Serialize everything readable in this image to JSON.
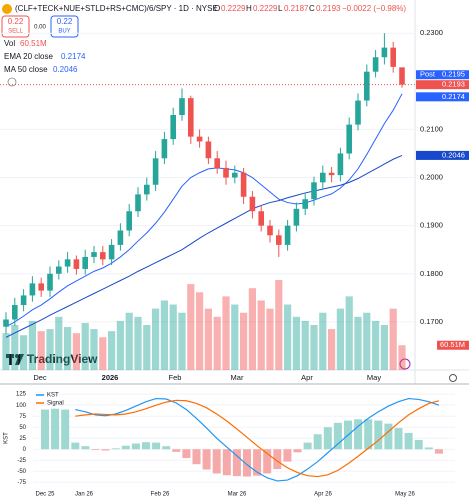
{
  "header": {
    "symbol": "(CLF+TECK+NUE+STLD+RS+CMC)/6/SPY · 1D · NYSE",
    "o_label": "O",
    "o": "0.2229",
    "h_label": "H",
    "h": "0.2229",
    "l_label": "L",
    "l": "0.2187",
    "c_label": "C",
    "c": "0.2193",
    "change": "−0.0022 (−0.98%)",
    "sell_price": "0.22",
    "sell": "SELL",
    "spread": "0.00",
    "buy_price": "0.22",
    "buy": "BUY",
    "vol_label": "Vol",
    "vol": "60.51M",
    "ema_label": "EMA 20 close",
    "ema": "0.2174",
    "ma_label": "MA 50 close",
    "ma": "0.2046",
    "post": "Post",
    "post_price": "0.2195",
    "logo": "TradingView"
  },
  "chart_data": [
    {
      "type": "candlestick",
      "x_labels": [
        "Dec",
        "2026",
        "Feb",
        "Mar",
        "Apr",
        "May"
      ],
      "ylim": [
        0.16,
        0.2369
      ],
      "yticks": [
        {
          "value": 0.23,
          "label": "0.2300"
        },
        {
          "value": 0.21,
          "label": "0.2100"
        },
        {
          "value": 0.2,
          "label": "0.2000"
        },
        {
          "value": 0.19,
          "label": "0.1900"
        },
        {
          "value": 0.18,
          "label": "0.1800"
        },
        {
          "value": 0.17,
          "label": "0.1700"
        }
      ],
      "up_color": "#26a69a",
      "down_color": "#ef5350",
      "open": [
        0.169,
        0.1705,
        0.1735,
        0.1755,
        0.178,
        0.1765,
        0.18,
        0.1815,
        0.183,
        0.181,
        0.1835,
        0.1845,
        0.183,
        0.186,
        0.189,
        0.193,
        0.1965,
        0.1985,
        0.204,
        0.208,
        0.213,
        0.2165,
        0.2085,
        0.2075,
        0.204,
        0.202,
        0.2,
        0.201,
        0.196,
        0.193,
        0.19,
        0.188,
        0.186,
        0.19,
        0.1935,
        0.1955,
        0.199,
        0.201,
        0.2005,
        0.205,
        0.211,
        0.216,
        0.222,
        0.225,
        0.227,
        0.2229
      ],
      "high": [
        0.172,
        0.175,
        0.1768,
        0.1795,
        0.1792,
        0.1815,
        0.1828,
        0.1845,
        0.1838,
        0.185,
        0.1858,
        0.1858,
        0.1872,
        0.1905,
        0.1945,
        0.198,
        0.2,
        0.2055,
        0.2095,
        0.2145,
        0.2185,
        0.217,
        0.21,
        0.2085,
        0.2055,
        0.2035,
        0.2025,
        0.202,
        0.1972,
        0.1942,
        0.1912,
        0.1892,
        0.1912,
        0.1948,
        0.1968,
        0.2002,
        0.2025,
        0.2022,
        0.2062,
        0.2125,
        0.2175,
        0.2235,
        0.2265,
        0.23,
        0.2282,
        0.2229
      ],
      "low": [
        0.1675,
        0.1692,
        0.1722,
        0.1742,
        0.1752,
        0.1752,
        0.1788,
        0.1802,
        0.1798,
        0.1798,
        0.1822,
        0.1818,
        0.1818,
        0.1848,
        0.1878,
        0.1918,
        0.1952,
        0.1972,
        0.2028,
        0.2068,
        0.2118,
        0.207,
        0.2062,
        0.2028,
        0.2008,
        0.1985,
        0.1988,
        0.1945,
        0.1915,
        0.1888,
        0.1865,
        0.1835,
        0.1848,
        0.1888,
        0.1922,
        0.1942,
        0.1975,
        0.199,
        0.1992,
        0.2038,
        0.2098,
        0.2148,
        0.2208,
        0.2235,
        0.2218,
        0.2187
      ],
      "close": [
        0.1705,
        0.1735,
        0.1755,
        0.178,
        0.1765,
        0.18,
        0.1815,
        0.183,
        0.181,
        0.1835,
        0.1845,
        0.183,
        0.186,
        0.189,
        0.193,
        0.1965,
        0.1985,
        0.204,
        0.208,
        0.213,
        0.2165,
        0.2085,
        0.2075,
        0.204,
        0.202,
        0.2,
        0.201,
        0.196,
        0.193,
        0.19,
        0.188,
        0.186,
        0.19,
        0.1935,
        0.1955,
        0.199,
        0.201,
        0.2005,
        0.205,
        0.211,
        0.216,
        0.222,
        0.225,
        0.227,
        0.223,
        0.2193
      ],
      "volume": [
        90,
        110,
        85,
        120,
        95,
        100,
        130,
        105,
        90,
        115,
        100,
        80,
        95,
        120,
        140,
        130,
        110,
        150,
        170,
        160,
        140,
        210,
        190,
        150,
        130,
        180,
        160,
        140,
        200,
        170,
        150,
        220,
        160,
        130,
        120,
        110,
        140,
        100,
        150,
        180,
        130,
        140,
        120,
        110,
        150,
        60.51
      ],
      "series": [
        {
          "name": "EMA 20 close",
          "color": "#2962ff",
          "values": [
            0.169,
            0.17,
            0.1712,
            0.1725,
            0.1735,
            0.1748,
            0.1762,
            0.1775,
            0.1785,
            0.1795,
            0.1805,
            0.1812,
            0.1822,
            0.1835,
            0.185,
            0.1868,
            0.1885,
            0.1905,
            0.1928,
            0.1955,
            0.1982,
            0.2,
            0.201,
            0.2018,
            0.202,
            0.2018,
            0.2016,
            0.201,
            0.2,
            0.1985,
            0.197,
            0.1955,
            0.1948,
            0.1945,
            0.1947,
            0.1953,
            0.196,
            0.1966,
            0.1978,
            0.1995,
            0.2018,
            0.2048,
            0.208,
            0.2112,
            0.214,
            0.2174
          ]
        },
        {
          "name": "MA 50 close",
          "color": "#1848cc",
          "values": [
            0.1668,
            0.1677,
            0.1686,
            0.1695,
            0.1704,
            0.1714,
            0.1723,
            0.1732,
            0.1741,
            0.175,
            0.1759,
            0.1768,
            0.1777,
            0.1786,
            0.1795,
            0.1805,
            0.1814,
            0.1823,
            0.1832,
            0.1841,
            0.185,
            0.1862,
            0.1874,
            0.1885,
            0.1895,
            0.1905,
            0.1915,
            0.1925,
            0.1935,
            0.1942,
            0.1948,
            0.1952,
            0.1958,
            0.1963,
            0.1968,
            0.1972,
            0.1976,
            0.198,
            0.1984,
            0.199,
            0.1998,
            0.2008,
            0.2018,
            0.2028,
            0.2038,
            0.2046
          ]
        }
      ]
    },
    {
      "type": "line",
      "x_labels": [
        "Dec 25",
        "Jan 26",
        "Feb 26",
        "Mar 26",
        "Apr 26",
        "May 26"
      ],
      "y_label": "KST",
      "ylim": [
        -88,
        139
      ],
      "yticks": [
        125,
        100,
        75,
        50,
        25,
        0,
        -25,
        -50,
        -75
      ],
      "series": [
        {
          "name": "KST",
          "color": "#2196f3",
          "values": [
            null,
            null,
            null,
            90,
            85,
            78,
            76,
            80,
            88,
            98,
            108,
            115,
            114,
            105,
            90,
            70,
            48,
            25,
            5,
            -15,
            -35,
            -52,
            -65,
            -72,
            -70,
            -60,
            -45,
            -28,
            -8,
            12,
            32,
            52,
            70,
            85,
            98,
            108,
            115,
            113,
            108,
            100
          ]
        },
        {
          "name": "Signal",
          "color": "#ff6d00",
          "values": [
            null,
            null,
            null,
            75,
            78,
            80,
            79,
            78,
            80,
            85,
            92,
            100,
            107,
            111,
            110,
            104,
            94,
            80,
            64,
            46,
            27,
            8,
            -10,
            -27,
            -42,
            -53,
            -60,
            -62,
            -58,
            -48,
            -33,
            -16,
            2,
            20,
            40,
            60,
            78,
            92,
            104,
            110
          ]
        }
      ],
      "histogram": {
        "up_color": "#9fd8d0",
        "down_color": "#f5a9a9",
        "values": [
          90,
          92,
          90,
          15,
          7,
          -2,
          -3,
          2,
          8,
          13,
          16,
          15,
          7,
          -6,
          -20,
          -34,
          -46,
          -55,
          -59,
          -61,
          -62,
          -60,
          -55,
          -45,
          -28,
          -7,
          15,
          34,
          50,
          60,
          65,
          68,
          68,
          65,
          58,
          48,
          37,
          21,
          4,
          -10
        ]
      }
    }
  ]
}
